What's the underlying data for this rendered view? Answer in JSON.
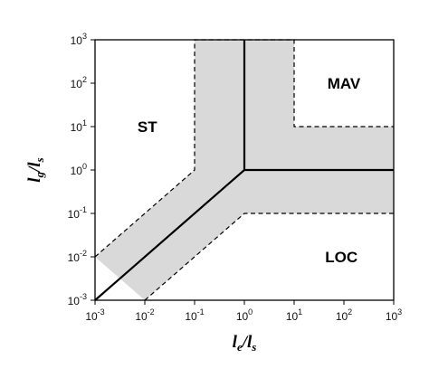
{
  "diagram": {
    "x_axis": {
      "label_main": "l",
      "label_sub_1": "e",
      "label_slash": "/",
      "label_main_2": "l",
      "label_sub_2": "s",
      "scale": "log",
      "range": [
        -3,
        3
      ]
    },
    "y_axis": {
      "label_main": "l",
      "label_sub_1": "g",
      "label_slash": "/",
      "label_main_2": "l",
      "label_sub_2": "s",
      "scale": "log",
      "range": [
        -3,
        3
      ]
    },
    "tick_base": "10",
    "tick_exponents": [
      "-3",
      "-2",
      "-1",
      "0",
      "1",
      "2",
      "3"
    ],
    "regions": [
      {
        "label": "ST",
        "x": -1.95,
        "y": 1.0
      },
      {
        "label": "MAV",
        "x": 2.0,
        "y": 2.0
      },
      {
        "label": "LOC",
        "x": 1.95,
        "y": -2.0
      }
    ],
    "boundary": [
      [
        -3,
        -3
      ],
      [
        0,
        0
      ],
      [
        0,
        3
      ],
      [
        0,
        0
      ],
      [
        3,
        0
      ]
    ],
    "band_upper": [
      [
        -3,
        -2
      ],
      [
        -1,
        0
      ],
      [
        -1,
        3
      ],
      [
        1,
        3
      ],
      [
        1,
        1
      ],
      [
        3,
        1
      ]
    ],
    "band_lower": [
      [
        -2,
        -3
      ],
      [
        0,
        -1
      ],
      [
        3,
        -1
      ]
    ],
    "band_color": "#d9d9d9"
  }
}
